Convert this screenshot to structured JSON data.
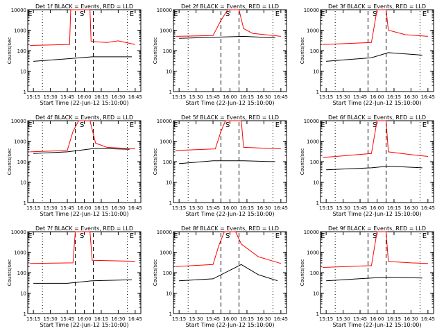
{
  "chart_data": [
    {
      "type": "line",
      "title": "Det 1f BLACK = Events, RED = LLD",
      "xlabel": "Start Time (22-Jun-12 15:10:00)",
      "ylabel": "Counts/sec",
      "x_ticks": [
        "15:15",
        "15:30",
        "15:45",
        "16:00",
        "16:15",
        "16:30",
        "16:45"
      ],
      "y_ticks": [
        "1",
        "10",
        "100",
        "1000",
        "10000"
      ],
      "ylim": [
        1,
        10000
      ],
      "y_scale": "log",
      "markers": [
        "E",
        "S",
        "E"
      ],
      "series": [
        {
          "color": "#ff0000",
          "values": [
            {
              "x": "15:12",
              "y": 180
            },
            {
              "x": "15:47",
              "y": 200
            },
            {
              "x": "15:48",
              "y": 10000
            },
            {
              "x": "16:05",
              "y": 10000
            },
            {
              "x": "16:06",
              "y": 280
            },
            {
              "x": "16:20",
              "y": 250
            },
            {
              "x": "16:30",
              "y": 300
            },
            {
              "x": "16:45",
              "y": 200
            }
          ]
        },
        {
          "color": "#000000",
          "values": [
            {
              "x": "15:15",
              "y": 30
            },
            {
              "x": "15:45",
              "y": 40
            },
            {
              "x": "16:07",
              "y": 50
            },
            {
              "x": "16:42",
              "y": 50
            }
          ]
        }
      ]
    },
    {
      "type": "line",
      "title": "Det 2f BLACK = Events, RED = LLD",
      "xlabel": "Start Time (22-Jun-12 15:10:00)",
      "ylabel": "Counts/sec",
      "x_ticks": [
        "15:15",
        "15:30",
        "15:45",
        "16:00",
        "16:15",
        "16:30",
        "16:45"
      ],
      "y_ticks": [
        "1",
        "10",
        "100",
        "1000",
        "10000"
      ],
      "ylim": [
        1,
        10000
      ],
      "y_scale": "log",
      "markers": [
        "E",
        "S",
        "E"
      ],
      "series": [
        {
          "color": "#ff0000",
          "values": [
            {
              "x": "15:12",
              "y": 500
            },
            {
              "x": "15:45",
              "y": 550
            },
            {
              "x": "15:52",
              "y": 3000
            },
            {
              "x": "15:58",
              "y": 10000
            },
            {
              "x": "16:08",
              "y": 10000
            },
            {
              "x": "16:12",
              "y": 1200
            },
            {
              "x": "16:20",
              "y": 700
            },
            {
              "x": "16:45",
              "y": 500
            }
          ]
        },
        {
          "color": "#000000",
          "values": [
            {
              "x": "15:15",
              "y": 400
            },
            {
              "x": "15:45",
              "y": 450
            },
            {
              "x": "16:12",
              "y": 500
            },
            {
              "x": "16:40",
              "y": 420
            }
          ]
        }
      ]
    },
    {
      "type": "line",
      "title": "Det 3f BLACK = Events, RED = LLD",
      "xlabel": "Start Time (22-Jun-12 15:10:00)",
      "ylabel": "Counts/sec",
      "x_ticks": [
        "15:15",
        "15:30",
        "15:45",
        "16:00",
        "16:15",
        "16:30",
        "16:45"
      ],
      "y_ticks": [
        "1",
        "10",
        "100",
        "1000",
        "10000"
      ],
      "ylim": [
        1,
        10000
      ],
      "y_scale": "log",
      "markers": [
        "E",
        "S",
        "E"
      ],
      "series": [
        {
          "color": "#ff0000",
          "values": [
            {
              "x": "15:12",
              "y": 200
            },
            {
              "x": "15:55",
              "y": 250
            },
            {
              "x": "16:00",
              "y": 10000
            },
            {
              "x": "16:08",
              "y": 10000
            },
            {
              "x": "16:10",
              "y": 1000
            },
            {
              "x": "16:25",
              "y": 600
            },
            {
              "x": "16:45",
              "y": 500
            }
          ]
        },
        {
          "color": "#000000",
          "values": [
            {
              "x": "15:15",
              "y": 30
            },
            {
              "x": "15:55",
              "y": 45
            },
            {
              "x": "16:10",
              "y": 80
            },
            {
              "x": "16:40",
              "y": 60
            }
          ]
        }
      ]
    },
    {
      "type": "line",
      "title": "Det 4f BLACK = Events, RED = LLD",
      "xlabel": "Start Time (22-Jun-12 15:10:00)",
      "ylabel": "Counts/sec",
      "x_ticks": [
        "15:15",
        "15:30",
        "15:45",
        "16:00",
        "16:15",
        "16:30",
        "16:45"
      ],
      "y_ticks": [
        "1",
        "10",
        "100",
        "1000",
        "10000"
      ],
      "ylim": [
        1,
        10000
      ],
      "y_scale": "log",
      "markers": [
        "E",
        "S",
        "E"
      ],
      "series": [
        {
          "color": "#ff0000",
          "values": [
            {
              "x": "15:12",
              "y": 300
            },
            {
              "x": "15:45",
              "y": 350
            },
            {
              "x": "15:50",
              "y": 3000
            },
            {
              "x": "15:55",
              "y": 10000
            },
            {
              "x": "16:05",
              "y": 10000
            },
            {
              "x": "16:10",
              "y": 800
            },
            {
              "x": "16:20",
              "y": 500
            },
            {
              "x": "16:45",
              "y": 420
            }
          ]
        },
        {
          "color": "#000000",
          "values": [
            {
              "x": "15:15",
              "y": 250
            },
            {
              "x": "15:45",
              "y": 300
            },
            {
              "x": "16:10",
              "y": 450
            },
            {
              "x": "16:40",
              "y": 400
            }
          ]
        }
      ]
    },
    {
      "type": "line",
      "title": "Det 5f BLACK = Events, RED = LLD",
      "xlabel": "Start Time (22-Jun-12 15:10:00)",
      "ylabel": "Counts/sec",
      "x_ticks": [
        "15:15",
        "15:30",
        "15:45",
        "16:00",
        "16:15",
        "16:30",
        "16:45"
      ],
      "y_ticks": [
        "1",
        "10",
        "100",
        "1000",
        "10000"
      ],
      "ylim": [
        1,
        10000
      ],
      "y_scale": "log",
      "markers": [
        "E",
        "S",
        "E"
      ],
      "series": [
        {
          "color": "#ff0000",
          "values": [
            {
              "x": "15:12",
              "y": 350
            },
            {
              "x": "15:47",
              "y": 420
            },
            {
              "x": "15:52",
              "y": 3000
            },
            {
              "x": "15:56",
              "y": 10000
            },
            {
              "x": "16:10",
              "y": 10000
            },
            {
              "x": "16:12",
              "y": 500
            },
            {
              "x": "16:45",
              "y": 420
            }
          ]
        },
        {
          "color": "#000000",
          "values": [
            {
              "x": "15:15",
              "y": 80
            },
            {
              "x": "15:45",
              "y": 110
            },
            {
              "x": "16:12",
              "y": 110
            },
            {
              "x": "16:40",
              "y": 100
            }
          ]
        }
      ]
    },
    {
      "type": "line",
      "title": "Det 6f BLACK = Events, RED = LLD",
      "xlabel": "Start Time (22-Jun-12 15:10:00)",
      "ylabel": "Counts/sec",
      "x_ticks": [
        "15:15",
        "15:30",
        "15:45",
        "16:00",
        "16:15",
        "16:30",
        "16:45"
      ],
      "y_ticks": [
        "1",
        "10",
        "100",
        "1000",
        "10000"
      ],
      "ylim": [
        1,
        10000
      ],
      "y_scale": "log",
      "markers": [
        "E",
        "S",
        "E"
      ],
      "series": [
        {
          "color": "#ff0000",
          "values": [
            {
              "x": "15:12",
              "y": 160
            },
            {
              "x": "15:55",
              "y": 250
            },
            {
              "x": "16:00",
              "y": 10000
            },
            {
              "x": "16:08",
              "y": 10000
            },
            {
              "x": "16:10",
              "y": 300
            },
            {
              "x": "16:30",
              "y": 220
            },
            {
              "x": "16:45",
              "y": 180
            }
          ]
        },
        {
          "color": "#000000",
          "values": [
            {
              "x": "15:15",
              "y": 40
            },
            {
              "x": "15:55",
              "y": 50
            },
            {
              "x": "16:10",
              "y": 60
            },
            {
              "x": "16:40",
              "y": 50
            }
          ]
        }
      ]
    },
    {
      "type": "line",
      "title": "Det 7f BLACK = Events, RED = LLD",
      "xlabel": "Start Time (22-Jun-12 15:10:00)",
      "ylabel": "Counts/sec",
      "x_ticks": [
        "15:15",
        "15:30",
        "15:45",
        "16:00",
        "16:15",
        "16:30",
        "16:45"
      ],
      "y_ticks": [
        "1",
        "10",
        "100",
        "1000",
        "10000"
      ],
      "ylim": [
        1,
        10000
      ],
      "y_scale": "log",
      "markers": [
        "E",
        "S",
        "E"
      ],
      "series": [
        {
          "color": "#ff0000",
          "values": [
            {
              "x": "15:12",
              "y": 280
            },
            {
              "x": "15:50",
              "y": 300
            },
            {
              "x": "15:52",
              "y": 10000
            },
            {
              "x": "16:05",
              "y": 10000
            },
            {
              "x": "16:07",
              "y": 400
            },
            {
              "x": "16:45",
              "y": 360
            }
          ]
        },
        {
          "color": "#000000",
          "values": [
            {
              "x": "15:15",
              "y": 30
            },
            {
              "x": "15:45",
              "y": 30
            },
            {
              "x": "16:07",
              "y": 40
            },
            {
              "x": "16:42",
              "y": 45
            }
          ]
        }
      ]
    },
    {
      "type": "line",
      "title": "Det 8f BLACK = Events, RED = LLD",
      "xlabel": "Start Time (22-Jun-12 15:10:00)",
      "ylabel": "Counts/sec",
      "x_ticks": [
        "15:15",
        "15:30",
        "15:45",
        "16:00",
        "16:15",
        "16:30",
        "16:45"
      ],
      "y_ticks": [
        "1",
        "10",
        "100",
        "1000",
        "10000"
      ],
      "ylim": [
        1,
        10000
      ],
      "y_scale": "log",
      "markers": [
        "E",
        "S",
        "E"
      ],
      "series": [
        {
          "color": "#ff0000",
          "values": [
            {
              "x": "15:12",
              "y": 200
            },
            {
              "x": "15:45",
              "y": 250
            },
            {
              "x": "15:50",
              "y": 2000
            },
            {
              "x": "15:55",
              "y": 10000
            },
            {
              "x": "16:05",
              "y": 10000
            },
            {
              "x": "16:10",
              "y": 2500
            },
            {
              "x": "16:25",
              "y": 600
            },
            {
              "x": "16:45",
              "y": 280
            }
          ]
        },
        {
          "color": "#000000",
          "values": [
            {
              "x": "15:15",
              "y": 40
            },
            {
              "x": "15:45",
              "y": 50
            },
            {
              "x": "16:10",
              "y": 250
            },
            {
              "x": "16:25",
              "y": 80
            },
            {
              "x": "16:42",
              "y": 40
            }
          ]
        }
      ]
    },
    {
      "type": "line",
      "title": "Det 9f BLACK = Events, RED = LLD",
      "xlabel": "Start Time (22-Jun-12 15:10:00)",
      "ylabel": "Counts/sec",
      "x_ticks": [
        "15:15",
        "15:30",
        "15:45",
        "16:00",
        "16:15",
        "16:30",
        "16:45"
      ],
      "y_ticks": [
        "1",
        "10",
        "100",
        "1000",
        "10000"
      ],
      "ylim": [
        1,
        10000
      ],
      "y_scale": "log",
      "markers": [
        "E",
        "S",
        "E"
      ],
      "series": [
        {
          "color": "#ff0000",
          "values": [
            {
              "x": "15:12",
              "y": 180
            },
            {
              "x": "15:55",
              "y": 220
            },
            {
              "x": "16:00",
              "y": 10000
            },
            {
              "x": "16:08",
              "y": 10000
            },
            {
              "x": "16:10",
              "y": 350
            },
            {
              "x": "16:30",
              "y": 300
            },
            {
              "x": "16:45",
              "y": 280
            }
          ]
        },
        {
          "color": "#000000",
          "values": [
            {
              "x": "15:15",
              "y": 40
            },
            {
              "x": "15:55",
              "y": 55
            },
            {
              "x": "16:10",
              "y": 60
            },
            {
              "x": "16:40",
              "y": 55
            }
          ]
        }
      ]
    }
  ]
}
